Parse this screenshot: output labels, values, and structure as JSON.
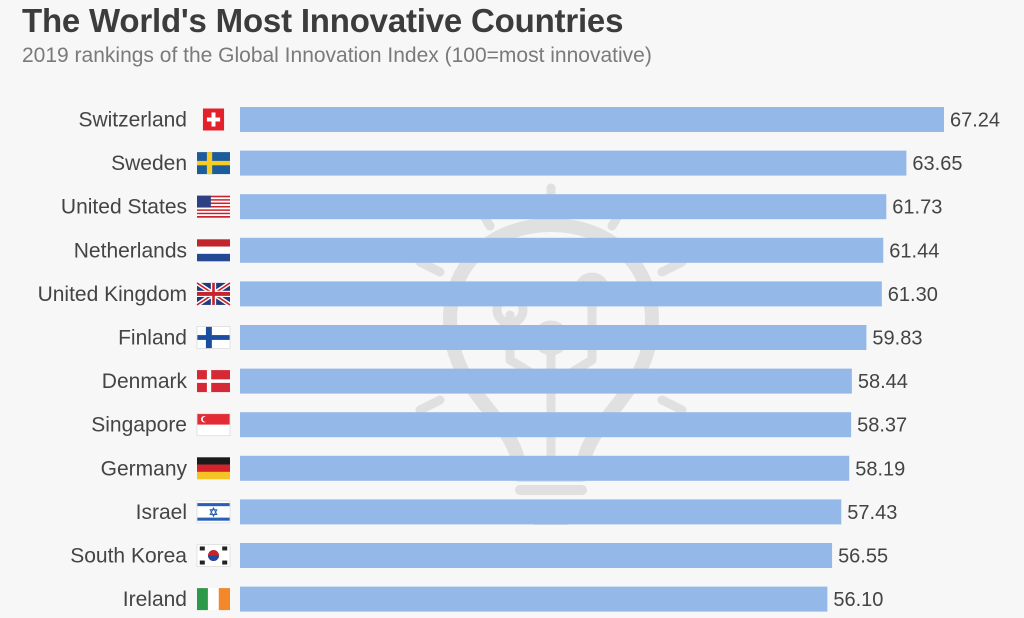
{
  "title": "The World's Most Innovative Countries",
  "subtitle": "2019 rankings of the Global Innovation Index (100=most innovative)",
  "colors": {
    "bar": "#94b8e8",
    "background": "#f7f7f7",
    "watermark": "#e2e2e2"
  },
  "chart_data": {
    "type": "bar",
    "orientation": "horizontal",
    "title": "The World's Most Innovative Countries",
    "subtitle": "2019 rankings of the Global Innovation Index (100=most innovative)",
    "categories": [
      "Switzerland",
      "Sweden",
      "United States",
      "Netherlands",
      "United Kingdom",
      "Finland",
      "Denmark",
      "Singapore",
      "Germany",
      "Israel",
      "South Korea",
      "Ireland"
    ],
    "values": [
      67.24,
      63.65,
      61.73,
      61.44,
      61.3,
      59.83,
      58.44,
      58.37,
      58.19,
      57.43,
      56.55,
      56.1
    ],
    "value_labels": [
      "67.24",
      "63.65",
      "61.73",
      "61.44",
      "61.30",
      "59.83",
      "58.44",
      "58.37",
      "58.19",
      "57.43",
      "56.55",
      "56.10"
    ],
    "flags": [
      "switzerland-flag-icon",
      "sweden-flag-icon",
      "united-states-flag-icon",
      "netherlands-flag-icon",
      "united-kingdom-flag-icon",
      "finland-flag-icon",
      "denmark-flag-icon",
      "singapore-flag-icon",
      "germany-flag-icon",
      "israel-flag-icon",
      "south-korea-flag-icon",
      "ireland-flag-icon"
    ],
    "xlim": [
      0,
      67.24
    ],
    "grid": false,
    "legend": "none"
  },
  "watermark_icon": "lightbulb-icon"
}
